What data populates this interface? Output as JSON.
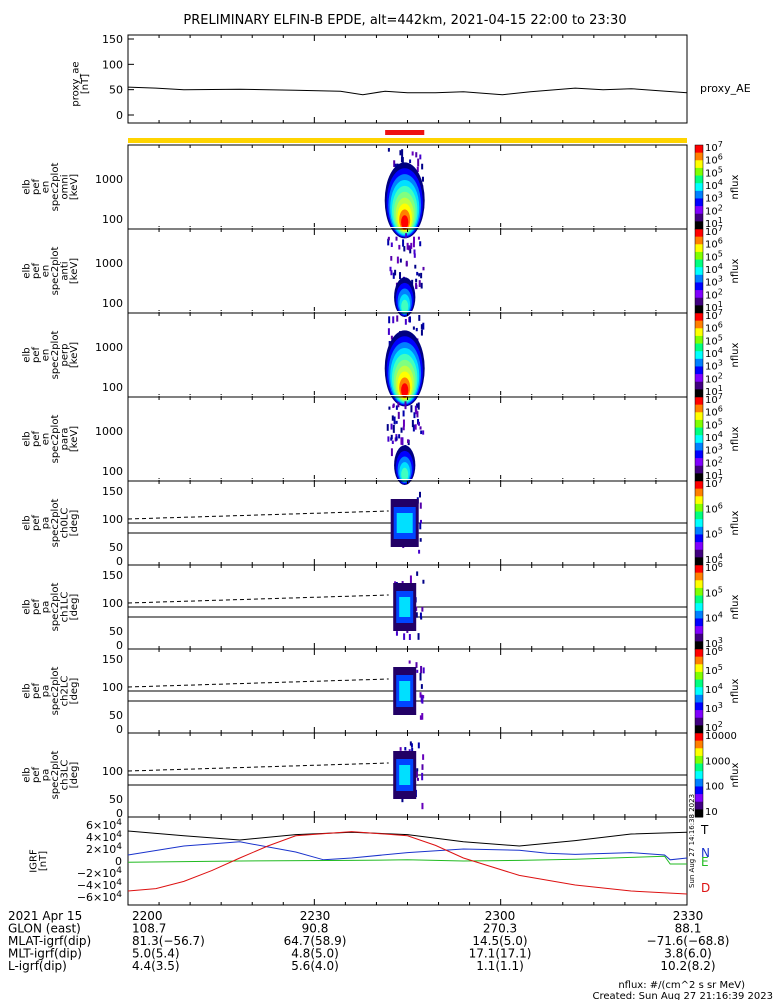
{
  "title": "PRELIMINARY ELFIN-B EPDE, alt=442km, 2021-04-15 22:00 to 23:30",
  "chart_data": [
    {
      "type": "line",
      "panel": "proxy_ae",
      "ylabel": [
        "proxy_ae",
        "[nT]"
      ],
      "right_label": "proxy_AE",
      "ylim": [
        0,
        150
      ],
      "yticks": [
        "150",
        "100",
        "50",
        "0"
      ],
      "x": [
        0,
        0.05,
        0.1,
        0.2,
        0.3,
        0.38,
        0.42,
        0.46,
        0.5,
        0.55,
        0.6,
        0.67,
        0.72,
        0.8,
        0.85,
        0.9,
        0.95,
        1.0
      ],
      "y": [
        55,
        53,
        50,
        51,
        49,
        47,
        40,
        47,
        44,
        44,
        46,
        40,
        46,
        53,
        50,
        52,
        48,
        44
      ]
    },
    {
      "type": "bar",
      "panel": "science-zone-bar",
      "bar_color": "#ffd400",
      "highlight_color": "#ee1111",
      "highlight_range": [
        0.46,
        0.53
      ]
    },
    {
      "type": "heatmap",
      "panel": "spectrograms",
      "panels": [
        {
          "ylabel": [
            "elb",
            "pef",
            "en",
            "spec2plot",
            "omni",
            "[keV]"
          ],
          "yticks": [
            "1000",
            "100"
          ],
          "cbar": [
            "10^7",
            "10^6",
            "10^5",
            "10^4",
            "10^3",
            "10^2",
            "10^1"
          ],
          "cbar_label": "nflux",
          "intensity": 1.0
        },
        {
          "ylabel": [
            "elb",
            "pef",
            "en",
            "spec2plot",
            "anti",
            "[keV]"
          ],
          "yticks": [
            "1000",
            "100"
          ],
          "cbar": [
            "10^7",
            "10^6",
            "10^5",
            "10^4",
            "10^3",
            "10^2",
            "10^1"
          ],
          "cbar_label": "nflux",
          "intensity": 0.45
        },
        {
          "ylabel": [
            "elb",
            "pef",
            "en",
            "spec2plot",
            "perp",
            "[keV]"
          ],
          "yticks": [
            "1000",
            "100"
          ],
          "cbar": [
            "10^7",
            "10^6",
            "10^5",
            "10^4",
            "10^3",
            "10^2",
            "10^1"
          ],
          "cbar_label": "nflux",
          "intensity": 1.0
        },
        {
          "ylabel": [
            "elb",
            "pef",
            "en",
            "spec2plot",
            "para",
            "[keV]"
          ],
          "yticks": [
            "1000",
            "100"
          ],
          "cbar": [
            "10^7",
            "10^6",
            "10^5",
            "10^4",
            "10^3",
            "10^2",
            "10^1"
          ],
          "cbar_label": "nflux",
          "intensity": 0.45
        }
      ]
    },
    {
      "type": "heatmap",
      "panel": "pitch-angle",
      "panels": [
        {
          "ylabel": [
            "elb",
            "pef",
            "pa",
            "spec2plot",
            "ch0LC",
            "[deg]"
          ],
          "yticks": [
            "150",
            "100",
            "50",
            "0"
          ],
          "cbar": [
            "10^7",
            "10^6",
            "10^5",
            "10^4"
          ],
          "cbar_label": "nflux"
        },
        {
          "ylabel": [
            "elb",
            "pef",
            "pa",
            "spec2plot",
            "ch1LC",
            "[deg]"
          ],
          "yticks": [
            "150",
            "100",
            "50",
            "0"
          ],
          "cbar": [
            "10^6",
            "10^5",
            "10^4",
            "10^3"
          ],
          "cbar_label": "nflux"
        },
        {
          "ylabel": [
            "elb",
            "pef",
            "pa",
            "spec2plot",
            "ch2LC",
            "[deg]"
          ],
          "yticks": [
            "150",
            "100",
            "50",
            "0"
          ],
          "cbar": [
            "10^6",
            "10^5",
            "10^4",
            "10^3",
            "10^2"
          ],
          "cbar_label": "nflux"
        },
        {
          "ylabel": [
            "elb",
            "pef",
            "pa",
            "spec2plot",
            "ch3LC",
            "[deg]"
          ],
          "yticks": [
            "100",
            "50",
            "0"
          ],
          "cbar": [
            "10000",
            "1000",
            "100",
            "10"
          ],
          "cbar_label": "nflux"
        }
      ]
    },
    {
      "type": "line",
      "panel": "igrf",
      "ylabel": [
        "IGRF",
        "[nT]"
      ],
      "yticks": [
        "6×10^4",
        "4×10^4",
        "2×10^4",
        "0",
        "−2×10^4",
        "−4×10^4",
        "−6×10^4"
      ],
      "ylim": [
        -60000,
        60000
      ],
      "series": [
        {
          "name": "T",
          "color": "#000000",
          "x": [
            0,
            0.1,
            0.2,
            0.3,
            0.4,
            0.5,
            0.6,
            0.7,
            0.8,
            0.9,
            1.0
          ],
          "y": [
            50000,
            42000,
            35000,
            44000,
            48000,
            44000,
            32000,
            25000,
            34000,
            45000,
            48000
          ]
        },
        {
          "name": "N",
          "color": "#1a33cc",
          "x": [
            0,
            0.1,
            0.2,
            0.3,
            0.35,
            0.4,
            0.5,
            0.6,
            0.7,
            0.75,
            0.8,
            0.9,
            0.96,
            0.97,
            1.0
          ],
          "y": [
            10000,
            25000,
            32000,
            15000,
            2000,
            5000,
            14000,
            20000,
            18000,
            13000,
            11000,
            14000,
            10000,
            2000,
            5000
          ]
        },
        {
          "name": "E",
          "color": "#22bb22",
          "x": [
            0,
            0.2,
            0.4,
            0.5,
            0.6,
            0.7,
            0.8,
            0.9,
            0.96,
            0.97,
            1.0
          ],
          "y": [
            -2000,
            0,
            1000,
            2000,
            0,
            1000,
            3000,
            6000,
            8000,
            -5000,
            -5000
          ]
        },
        {
          "name": "D",
          "color": "#dd1111",
          "x": [
            0,
            0.05,
            0.1,
            0.15,
            0.2,
            0.25,
            0.3,
            0.4,
            0.5,
            0.55,
            0.6,
            0.7,
            0.8,
            0.9,
            1.0
          ],
          "y": [
            -50000,
            -46000,
            -34000,
            -16000,
            5000,
            25000,
            42000,
            49000,
            42000,
            26000,
            5000,
            -24000,
            -40000,
            -50000,
            -55000
          ]
        }
      ]
    }
  ],
  "colorbar_tick_note": "nflux",
  "axis": {
    "rows": [
      {
        "label": "2021 Apr 15",
        "values": [
          "2200",
          "2230",
          "2300",
          "2330"
        ]
      },
      {
        "label": "GLON (east)",
        "values": [
          "108.7",
          "90.8",
          "270.3",
          "88.1"
        ]
      },
      {
        "label": "MLAT-igrf(dip)",
        "values": [
          "81.3(−56.7)",
          "64.7(58.9)",
          "14.5(5.0)",
          "−71.6(−68.8)"
        ]
      },
      {
        "label": "MLT-igrf(dip)",
        "values": [
          "5.0(5.4)",
          "4.8(5.0)",
          "17.1(17.1)",
          "3.8(6.0)"
        ]
      },
      {
        "label": "L-igrf(dip)",
        "values": [
          "4.4(3.5)",
          "5.6(4.0)",
          "1.1(1.1)",
          "10.2(8.2)"
        ]
      }
    ]
  },
  "footer": {
    "units": "nflux: #/(cm^2 s sr MeV)",
    "created": "Created: Sun Aug 27 21:16:39 2023",
    "side_stamp": "Sun Aug 27 14:16:38 2023"
  }
}
